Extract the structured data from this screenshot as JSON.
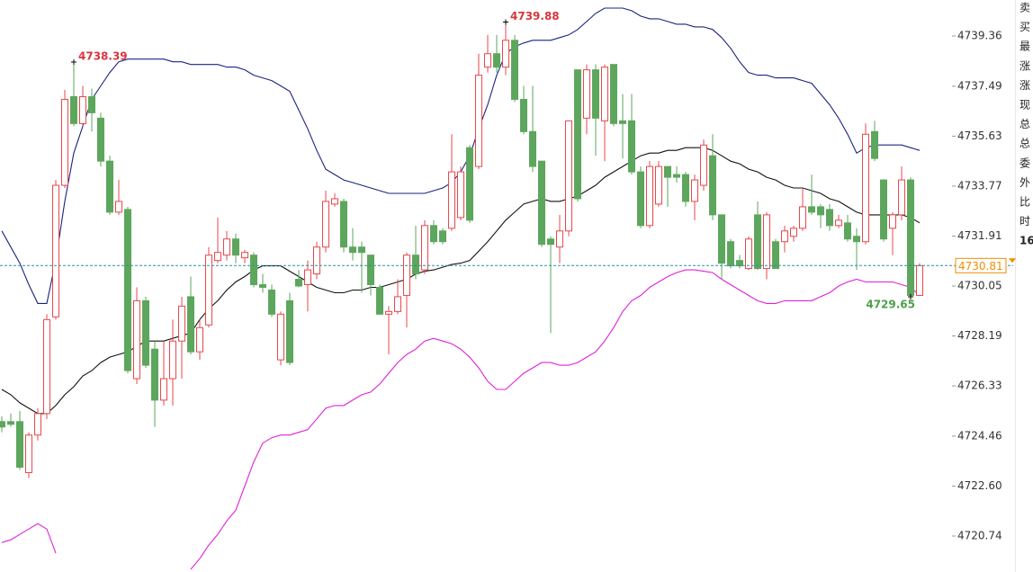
{
  "chart_data": {
    "type": "candlestick",
    "open": [
      4725.0,
      4725.0,
      4725.0,
      4723.1,
      4724.5,
      4725.3,
      4728.9,
      4733.8,
      4737.1,
      4736.1,
      4737.1,
      4736.3,
      4734.7,
      4732.8,
      4732.9,
      4726.6,
      4729.5,
      4727.7,
      4725.8,
      4726.6,
      4728.0,
      4729.65,
      4727.6,
      4728.6,
      4731.0,
      4731.2,
      4731.8,
      4731.1,
      4731.2,
      4730.1,
      4729.9,
      4727.3,
      4729.5,
      4730.3,
      4730.1,
      4730.5,
      4731.5,
      4733.1,
      4733.2,
      4731.5,
      4731.5,
      4731.2,
      4730.0,
      4729.0,
      4729.1,
      4729.7,
      4731.2,
      4730.65,
      4732.3,
      4732.1,
      4732.2,
      4732.6,
      4735.2,
      4734.5,
      4738.2,
      4738.7,
      4738.2,
      4739.2,
      4737.0,
      4735.8,
      4734.7,
      4731.8,
      4731.5,
      4732.1,
      4738.1,
      4736.3,
      4738.1,
      4736.2,
      4738.3,
      4736.2,
      4736.2,
      4734.3,
      4732.3,
      4733.1,
      4734.5,
      4734.2,
      4734.2,
      4733.2,
      4733.8,
      4734.9,
      4732.7,
      4731.7,
      4731.0,
      4730.7,
      4732.7,
      4730.7,
      4731.7,
      4731.7,
      4731.9,
      4732.2,
      4733.0,
      4733.0,
      4732.9,
      4732.3,
      4732.4,
      4731.9,
      4731.7,
      4735.8,
      4734.0,
      4732.2,
      4732.7,
      4734.0,
      4729.7
    ],
    "high": [
      4725.2,
      4725.3,
      4725.4,
      4724.6,
      4725.5,
      4729.0,
      4734.0,
      4737.35,
      4738.39,
      4737.5,
      4737.4,
      4736.5,
      4734.9,
      4734.0,
      4733.0,
      4730.0,
      4729.65,
      4728.0,
      4728.0,
      4728.8,
      4729.65,
      4730.4,
      4728.8,
      4731.5,
      4732.6,
      4732.1,
      4732.0,
      4731.4,
      4731.3,
      4730.5,
      4730.1,
      4729.1,
      4729.8,
      4730.65,
      4731.0,
      4731.7,
      4733.6,
      4733.5,
      4733.3,
      4732.2,
      4731.7,
      4731.2,
      4730.1,
      4729.3,
      4730.3,
      4731.3,
      4732.3,
      4732.5,
      4732.5,
      4732.2,
      4735.7,
      4734.5,
      4735.3,
      4738.7,
      4739.4,
      4739.4,
      4739.88,
      4739.4,
      4737.5,
      4737.5,
      4734.7,
      4731.9,
      4732.7,
      4736.2,
      4738.1,
      4738.3,
      4738.3,
      4738.3,
      4738.3,
      4737.2,
      4737.2,
      4734.5,
      4734.7,
      4734.7,
      4734.5,
      4734.5,
      4734.3,
      4734.2,
      4735.5,
      4735.7,
      4732.7,
      4731.8,
      4731.2,
      4731.9,
      4733.2,
      4732.8,
      4731.8,
      4732.3,
      4732.3,
      4733.7,
      4734.2,
      4733.1,
      4733.1,
      4732.7,
      4732.7,
      4732.2,
      4736.1,
      4736.2,
      4734.0,
      4732.8,
      4734.5,
      4734.1,
      4730.9
    ],
    "low": [
      4724.6,
      4724.8,
      4723.2,
      4722.9,
      4724.3,
      4725.1,
      4728.8,
      4733.7,
      4736.0,
      4736.0,
      4735.8,
      4734.5,
      4732.7,
      4732.7,
      4726.8,
      4726.4,
      4727.0,
      4724.8,
      4725.6,
      4725.6,
      4726.6,
      4727.5,
      4727.3,
      4728.5,
      4730.9,
      4731.0,
      4730.9,
      4730.9,
      4730.0,
      4729.8,
      4728.9,
      4727.1,
      4727.1,
      4730.0,
      4729.1,
      4730.3,
      4731.3,
      4733.0,
      4731.3,
      4731.0,
      4729.8,
      4729.7,
      4729.0,
      4727.5,
      4729.0,
      4728.5,
      4730.3,
      4730.5,
      4731.6,
      4731.6,
      4732.1,
      4732.5,
      4732.4,
      4734.4,
      4738.0,
      4738.0,
      4737.9,
      4736.9,
      4735.7,
      4734.3,
      4731.5,
      4728.3,
      4730.9,
      4731.9,
      4733.2,
      4735.7,
      4734.9,
      4734.7,
      4736.0,
      4734.8,
      4734.2,
      4732.2,
      4732.2,
      4733.0,
      4733.0,
      4733.9,
      4733.0,
      4732.5,
      4733.6,
      4732.5,
      4730.3,
      4730.7,
      4730.7,
      4730.65,
      4730.65,
      4730.3,
      4730.7,
      4731.3,
      4731.7,
      4732.1,
      4732.7,
      4732.2,
      4732.1,
      4732.2,
      4731.7,
      4730.65,
      4731.6,
      4734.7,
      4731.7,
      4731.2,
      4732.5,
      4729.65,
      4729.7
    ],
    "close": [
      4724.8,
      4724.9,
      4723.3,
      4724.5,
      4725.3,
      4728.8,
      4733.8,
      4737.0,
      4736.1,
      4737.1,
      4736.5,
      4734.7,
      4732.8,
      4733.2,
      4726.9,
      4729.5,
      4727.1,
      4725.8,
      4726.6,
      4728.0,
      4729.3,
      4727.6,
      4728.5,
      4731.2,
      4731.3,
      4731.8,
      4731.2,
      4731.3,
      4730.1,
      4730.0,
      4729.0,
      4729.0,
      4727.2,
      4730.05,
      4730.65,
      4731.5,
      4733.2,
      4733.3,
      4731.5,
      4731.3,
      4731.3,
      4730.1,
      4729.0,
      4729.1,
      4729.65,
      4731.2,
      4730.5,
      4732.3,
      4731.7,
      4731.7,
      4734.3,
      4734.3,
      4732.5,
      4737.9,
      4738.7,
      4738.2,
      4739.2,
      4737.0,
      4735.8,
      4734.5,
      4731.6,
      4731.6,
      4732.1,
      4736.2,
      4733.3,
      4738.1,
      4736.3,
      4738.2,
      4736.1,
      4736.1,
      4734.3,
      4732.3,
      4734.5,
      4734.5,
      4734.1,
      4734.1,
      4733.2,
      4734.0,
      4735.3,
      4732.7,
      4730.9,
      4730.8,
      4730.8,
      4731.8,
      4730.7,
      4732.7,
      4730.7,
      4732.1,
      4732.2,
      4733.0,
      4732.8,
      4732.7,
      4732.3,
      4732.5,
      4731.8,
      4731.7,
      4735.7,
      4734.8,
      4731.8,
      4732.7,
      4734.0,
      4729.7,
      4730.81
    ],
    "up_color": "#e8474c",
    "down_color": "#5da65d",
    "bands": [
      {
        "color": "#1a237e",
        "values": [
          4732.1,
          4731.5,
          4730.9,
          4730.1,
          4729.4,
          4729.4,
          4731.0,
          4733.2,
          4735.0,
          4736.0,
          4737.0,
          4737.5,
          4738.0,
          4738.4,
          4738.5,
          4738.5,
          4738.5,
          4738.5,
          4738.5,
          4738.4,
          4738.4,
          4738.3,
          4738.3,
          4738.3,
          4738.3,
          4738.2,
          4738.2,
          4738.1,
          4737.9,
          4737.8,
          4737.7,
          4737.5,
          4737.3,
          4736.6,
          4735.9,
          4735.1,
          4734.4,
          4734.2,
          4734.0,
          4733.9,
          4733.8,
          4733.7,
          4733.6,
          4733.5,
          4733.5,
          4733.5,
          4733.5,
          4733.5,
          4733.6,
          4733.7,
          4733.9,
          4734.3,
          4734.9,
          4735.9,
          4736.8,
          4737.9,
          4738.7,
          4738.96,
          4739.1,
          4739.2,
          4739.2,
          4739.2,
          4739.3,
          4739.4,
          4739.6,
          4739.9,
          4740.2,
          4740.4,
          4740.4,
          4740.4,
          4740.3,
          4740.1,
          4740.0,
          4740.0,
          4739.9,
          4739.8,
          4739.8,
          4739.7,
          4739.7,
          4739.6,
          4739.3,
          4738.9,
          4738.4,
          4738.0,
          4737.9,
          4737.9,
          4737.8,
          4737.8,
          4737.8,
          4737.7,
          4737.6,
          4737.2,
          4736.8,
          4736.3,
          4735.7,
          4735.0,
          4735.2,
          4735.3,
          4735.3,
          4735.3,
          4735.3,
          4735.2,
          4735.1
        ]
      },
      {
        "color": "#111111",
        "values": [
          4726.2,
          4726.0,
          4725.7,
          4725.5,
          4725.3,
          4725.3,
          4725.6,
          4726.0,
          4726.3,
          4726.7,
          4726.9,
          4727.2,
          4727.4,
          4727.5,
          4727.6,
          4727.8,
          4728.0,
          4728.0,
          4728.0,
          4728.1,
          4728.2,
          4728.3,
          4728.8,
          4729.2,
          4729.5,
          4729.9,
          4730.2,
          4730.4,
          4730.65,
          4730.8,
          4730.8,
          4730.8,
          4730.6,
          4730.4,
          4730.2,
          4730.0,
          4729.9,
          4729.8,
          4729.8,
          4729.9,
          4729.9,
          4730.0,
          4730.0,
          4730.1,
          4730.2,
          4730.3,
          4730.5,
          4730.6,
          4730.65,
          4730.75,
          4730.85,
          4730.9,
          4731.0,
          4731.35,
          4731.7,
          4732.1,
          4732.5,
          4732.8,
          4733.1,
          4733.2,
          4733.3,
          4733.2,
          4733.2,
          4733.3,
          4733.4,
          4733.6,
          4733.8,
          4734.1,
          4734.3,
          4734.5,
          4734.7,
          4734.9,
          4735.0,
          4735.0,
          4735.1,
          4735.1,
          4735.2,
          4735.2,
          4735.2,
          4735.1,
          4734.9,
          4734.7,
          4734.6,
          4734.4,
          4734.3,
          4734.1,
          4734.0,
          4733.8,
          4733.7,
          4733.7,
          4733.6,
          4733.5,
          4733.3,
          4733.2,
          4733.0,
          4732.8,
          4732.7,
          4732.7,
          4732.7,
          4732.7,
          4732.7,
          4732.6,
          4732.4
        ]
      },
      {
        "color": "#e020d8",
        "values": [
          4720.5,
          4720.6,
          4720.8,
          4721.0,
          4721.2,
          4721.0,
          4720.1,
          null,
          null,
          null,
          null,
          null,
          null,
          null,
          null,
          null,
          null,
          null,
          null,
          null,
          null,
          4719.5,
          4719.9,
          4720.4,
          4720.8,
          4721.3,
          4721.7,
          4722.6,
          4723.5,
          4724.2,
          4724.4,
          4724.5,
          4724.5,
          4724.6,
          4724.7,
          4725.1,
          4725.5,
          4725.6,
          4725.6,
          4725.8,
          4726.0,
          4726.1,
          4726.4,
          4726.8,
          4727.2,
          4727.5,
          4727.7,
          4728.0,
          4728.1,
          4728.0,
          4727.9,
          4727.7,
          4727.4,
          4727.0,
          4726.5,
          4726.2,
          4726.2,
          4726.5,
          4726.8,
          4727.0,
          4727.2,
          4727.2,
          4727.1,
          4727.1,
          4727.2,
          4727.4,
          4727.6,
          4728.0,
          4728.5,
          4729.1,
          4729.5,
          4729.7,
          4730.0,
          4730.2,
          4730.4,
          4730.55,
          4730.65,
          4730.65,
          4730.6,
          4730.55,
          4730.3,
          4730.1,
          4729.9,
          4729.7,
          4729.5,
          4729.4,
          4729.4,
          4729.5,
          4729.5,
          4729.5,
          4729.5,
          4729.65,
          4729.8,
          4730.05,
          4730.2,
          4730.3,
          4730.2,
          4730.2,
          4730.2,
          4730.2,
          4730.1,
          4730.0,
          4729.7
        ]
      }
    ],
    "ylim": [
      4719.4,
      4740.7
    ],
    "yticks": [
      4739.36,
      4737.49,
      4735.63,
      4733.77,
      4731.91,
      4730.05,
      4728.19,
      4726.33,
      4724.46,
      {
        "value": 4722.6,
        "label": "4722.60"
      },
      4720.74
    ],
    "last_price": 4730.81,
    "last_price_color": "#f08c00",
    "last_line_color": "#2a8fa0",
    "high_labels": [
      4738.39,
      4739.88
    ],
    "low_labels": [
      4729.65
    ],
    "high_label_color": "#d9363e",
    "low_label_color": "#4aa04a",
    "side_labels": [
      "卖",
      "买",
      "最",
      "涨",
      "涨",
      "现",
      "总",
      "总",
      "委",
      "外",
      "比",
      "时",
      "16"
    ]
  }
}
